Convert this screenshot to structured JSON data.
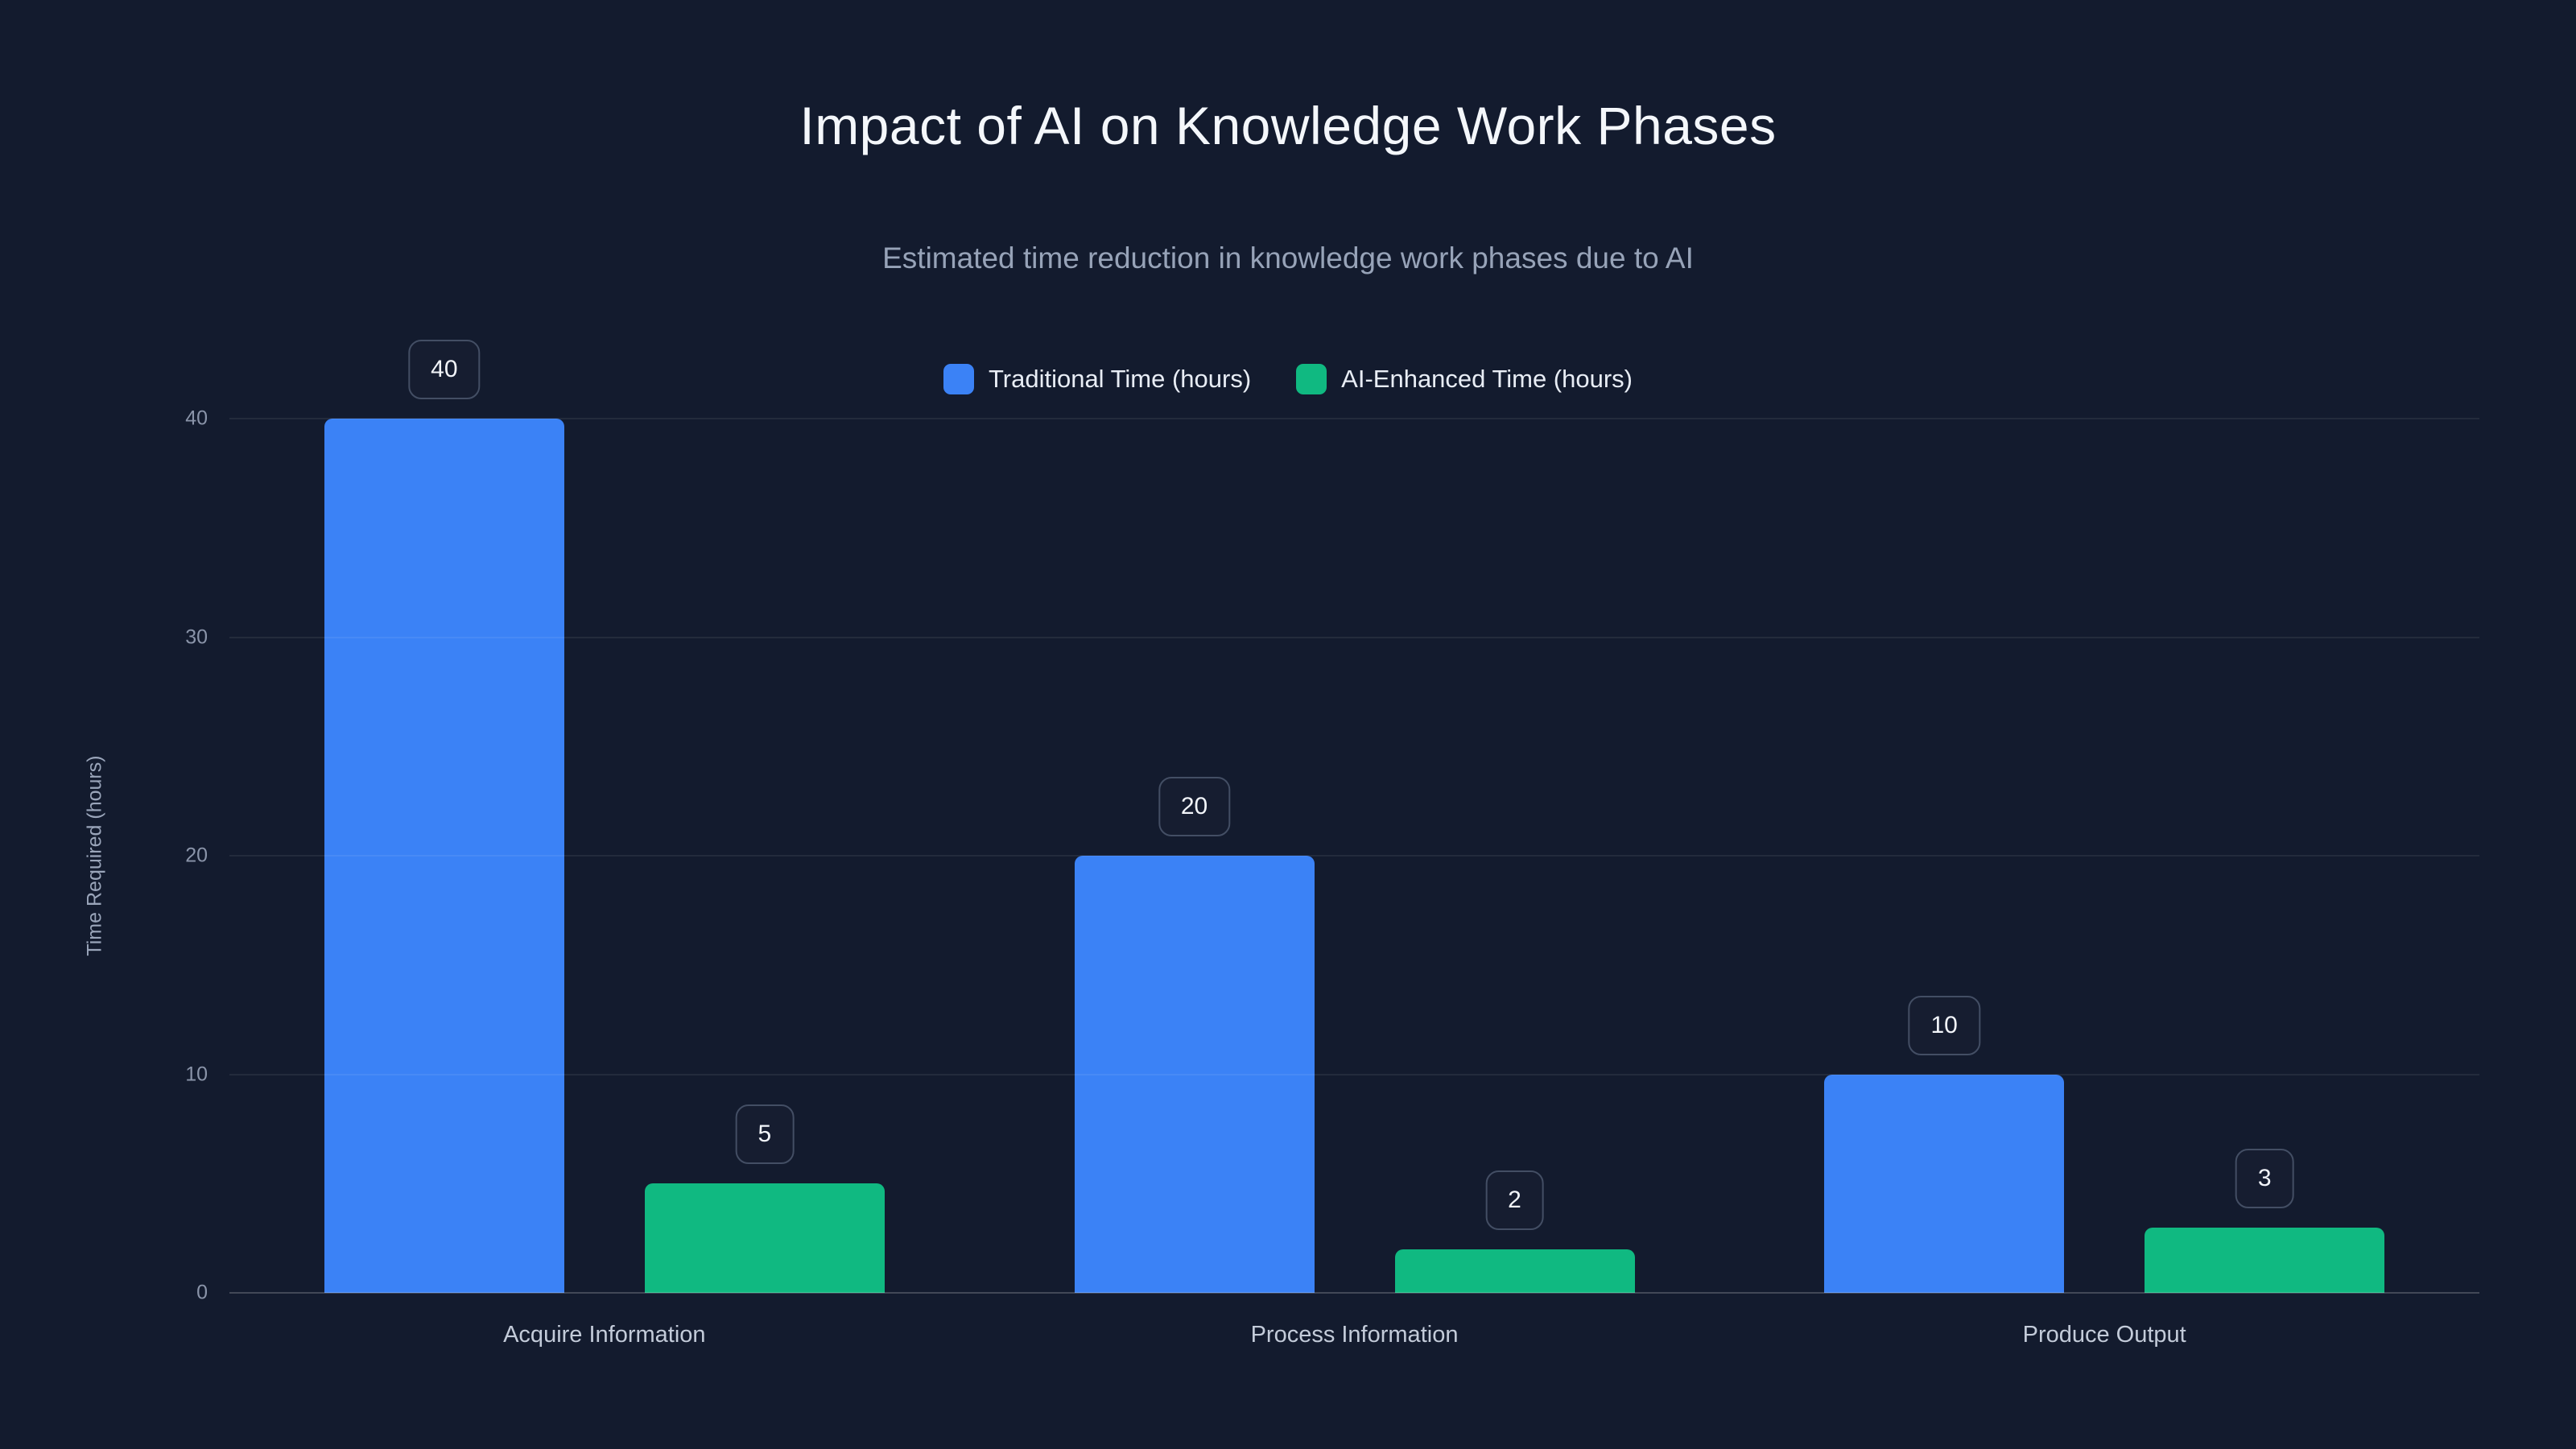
{
  "title": "Impact of AI on Knowledge Work Phases",
  "subtitle": "Estimated time reduction in knowledge work phases due to AI",
  "chart_data": {
    "type": "bar",
    "categories": [
      "Acquire Information",
      "Process Information",
      "Produce Output"
    ],
    "series": [
      {
        "name": "Traditional Time (hours)",
        "color": "#3b82f6",
        "values": [
          40,
          20,
          10
        ]
      },
      {
        "name": "AI-Enhanced Time (hours)",
        "color": "#10b981",
        "values": [
          5,
          2,
          3
        ]
      }
    ],
    "title": "Impact of AI on Knowledge Work Phases",
    "xlabel": "",
    "ylabel": "Time Required (hours)",
    "ylim": [
      0,
      40
    ],
    "yticks": [
      0,
      10,
      20,
      30,
      40
    ],
    "grid": true,
    "legend_position": "top",
    "data_labels": true
  },
  "colors": {
    "background": "#131b2e",
    "traditional": "#3b82f6",
    "ai_enhanced": "#10b981",
    "gridline": "rgba(255,255,255,0.07)",
    "text_primary": "#f4f7fb",
    "text_secondary": "#97a3b8"
  }
}
